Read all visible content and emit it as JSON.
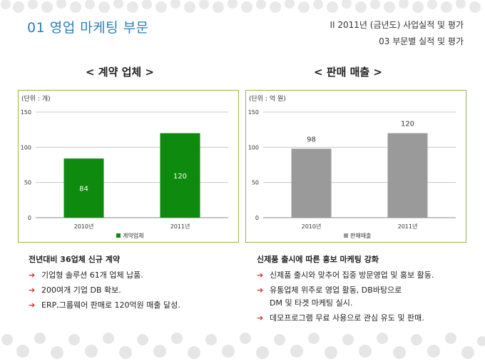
{
  "header": {
    "title": "01  영업 마케팅 부문",
    "section": "II  2011년 (금년도) 사업실적 및 평가",
    "subsection": "03  부문별 실적 및 평가"
  },
  "left": {
    "heading": "< 계약 업체 >",
    "unit": "(단위 : 개)",
    "desc_title": "전년대비 36업체 신규 계약",
    "items": [
      "기업형 솔루션 61개 업체 납품.",
      "200여개 기업 DB 확보.",
      "ERP,그룹웨어 판매로 120억원 매출 달성."
    ]
  },
  "right": {
    "heading": "< 판매 매출 >",
    "unit": "(단위 : 억 원)",
    "desc_title": "신제품 출시에 따른 홍보 마케팅 강화",
    "items": [
      "신제품 출시와 맞추어 집중 방문영업 및 홍보 활동.",
      "유통업체 위주로 영업 활동, DB바탕으로",
      "데모프로그램 무료 사용으로 관심 유도 및 판매."
    ],
    "item2_cont": "DM 및 타겟 마케팅 실시."
  },
  "chart_data": [
    {
      "type": "bar",
      "categories": [
        "2010년",
        "2011년"
      ],
      "series": [
        {
          "name": "계약업체",
          "values": [
            84,
            120
          ]
        }
      ],
      "ylim": [
        0,
        150
      ],
      "yticks": [
        0,
        50,
        100,
        150
      ],
      "color": "#0e8a0e",
      "label_color": "#ffffff",
      "grid": true,
      "legend": "bottom"
    },
    {
      "type": "bar",
      "categories": [
        "2010년",
        "2011년"
      ],
      "series": [
        {
          "name": "판매매출",
          "values": [
            98,
            120
          ]
        }
      ],
      "ylim": [
        0,
        150
      ],
      "yticks": [
        0,
        50,
        100,
        150
      ],
      "color": "#9a9a9a",
      "label_color": "#333333",
      "grid": true,
      "legend": "bottom"
    }
  ]
}
